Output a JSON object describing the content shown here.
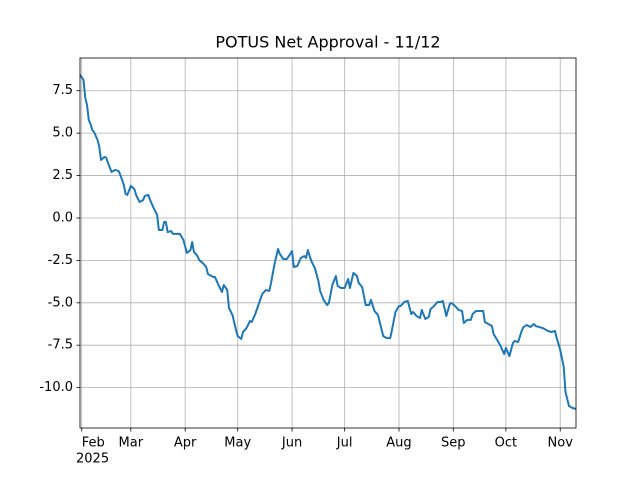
{
  "chart_data": {
    "type": "line",
    "title": "POTUS Net Approval - 11/12",
    "x_offset_label": "2025",
    "x": [
      30,
      32,
      33,
      34,
      35,
      36,
      37,
      38,
      40,
      41,
      42,
      44,
      45,
      46,
      48,
      49,
      50,
      52,
      53,
      55,
      56,
      57,
      59,
      61,
      62,
      64,
      66,
      67,
      69,
      70,
      72,
      74,
      75,
      77,
      78,
      79,
      80,
      82,
      83,
      85,
      87,
      89,
      91,
      93,
      94,
      95,
      97,
      98,
      100,
      102,
      103,
      106,
      107,
      109,
      111,
      112,
      114,
      115,
      117,
      119,
      120,
      122,
      123,
      125,
      127,
      128,
      130,
      132,
      134,
      136,
      138,
      139,
      141,
      143,
      144,
      146,
      148,
      150,
      151,
      152,
      154,
      156,
      158,
      159,
      160,
      162,
      164,
      166,
      167,
      169,
      171,
      172,
      174,
      176,
      177,
      179,
      181,
      183,
      184,
      186,
      188,
      189,
      191,
      193,
      195,
      196,
      198,
      200,
      201,
      203,
      205,
      207,
      208,
      210,
      212,
      213,
      215,
      217,
      219,
      220,
      222,
      224,
      225,
      227,
      229,
      230,
      232,
      234,
      236,
      237,
      239,
      241,
      242,
      244,
      246,
      248,
      249,
      251,
      253,
      254,
      256,
      258,
      260,
      261,
      263,
      265,
      266,
      268,
      270,
      272,
      273,
      275,
      277,
      278,
      280,
      282,
      283,
      285,
      287,
      289,
      290,
      292,
      294,
      295,
      297,
      299,
      301,
      302,
      304,
      306,
      307,
      309,
      311,
      313
    ],
    "series": [
      {
        "name": "Net Approval",
        "color": "#1f77b4",
        "values": [
          8.43,
          8.14,
          7.08,
          6.66,
          5.78,
          5.54,
          5.19,
          5.07,
          4.6,
          4.19,
          3.42,
          3.6,
          3.54,
          3.24,
          2.71,
          2.77,
          2.83,
          2.77,
          2.54,
          1.95,
          1.42,
          1.36,
          1.89,
          1.71,
          1.36,
          0.94,
          1.06,
          1.3,
          1.36,
          1.06,
          0.59,
          0.18,
          -0.71,
          -0.71,
          -0.24,
          -0.24,
          -0.83,
          -0.77,
          -0.94,
          -0.94,
          -0.94,
          -1.3,
          -2.06,
          -1.89,
          -1.42,
          -2.0,
          -2.24,
          -2.48,
          -2.65,
          -2.89,
          -3.3,
          -3.48,
          -3.48,
          -3.95,
          -4.36,
          -3.95,
          -4.25,
          -5.31,
          -5.72,
          -6.6,
          -6.96,
          -7.13,
          -6.72,
          -6.49,
          -6.07,
          -6.13,
          -5.66,
          -5.07,
          -4.48,
          -4.25,
          -4.3,
          -3.83,
          -2.71,
          -1.83,
          -2.12,
          -2.42,
          -2.42,
          -2.12,
          -1.95,
          -2.89,
          -2.83,
          -2.36,
          -2.24,
          -2.36,
          -1.89,
          -2.54,
          -2.95,
          -3.71,
          -4.3,
          -4.83,
          -5.13,
          -5.01,
          -3.95,
          -3.42,
          -4.01,
          -4.13,
          -4.13,
          -3.6,
          -4.13,
          -3.24,
          -3.42,
          -3.83,
          -4.07,
          -5.13,
          -5.13,
          -4.83,
          -5.48,
          -5.72,
          -6.13,
          -6.96,
          -7.08,
          -7.08,
          -6.6,
          -5.54,
          -5.19,
          -5.19,
          -4.95,
          -4.89,
          -5.66,
          -5.54,
          -5.78,
          -5.9,
          -5.42,
          -5.95,
          -5.84,
          -5.37,
          -5.19,
          -4.95,
          -4.95,
          -4.89,
          -5.78,
          -5.07,
          -5.01,
          -5.19,
          -5.42,
          -5.48,
          -6.19,
          -6.01,
          -6.01,
          -5.66,
          -5.48,
          -5.48,
          -5.48,
          -6.13,
          -6.25,
          -6.37,
          -6.84,
          -7.19,
          -7.55,
          -8.02,
          -7.66,
          -8.14,
          -7.37,
          -7.25,
          -7.31,
          -6.66,
          -6.43,
          -6.31,
          -6.43,
          -6.25,
          -6.37,
          -6.43,
          -6.49,
          -6.54,
          -6.66,
          -6.72,
          -6.66,
          -7.08,
          -7.78,
          -8.78,
          -10.26,
          -11.08,
          -11.2,
          -11.26
        ]
      }
    ],
    "xlim": [
      30,
      313
    ],
    "xticks": [
      {
        "value": 31,
        "label": "Feb"
      },
      {
        "value": 59,
        "label": "Mar"
      },
      {
        "value": 90,
        "label": "Apr"
      },
      {
        "value": 120,
        "label": "May"
      },
      {
        "value": 151,
        "label": "Jun"
      },
      {
        "value": 181,
        "label": "Jul"
      },
      {
        "value": 212,
        "label": "Aug"
      },
      {
        "value": 243,
        "label": "Sep"
      },
      {
        "value": 273,
        "label": "Oct"
      },
      {
        "value": 304,
        "label": "Nov"
      }
    ],
    "ylim": [
      -12.38,
      9.43
    ],
    "yticks": [
      {
        "value": -10,
        "label": "-10.0"
      },
      -7.5,
      {
        "value": -5,
        "label": "-5.0"
      },
      -2.5,
      {
        "value": 0,
        "label": "0.0"
      },
      2.5,
      {
        "value": 5,
        "label": "5.0"
      },
      7.5
    ],
    "grid": true
  }
}
